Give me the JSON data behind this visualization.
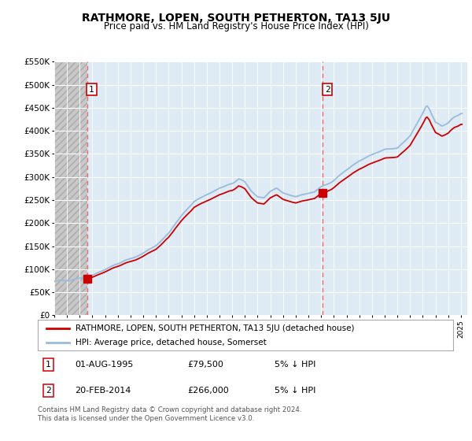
{
  "title": "RATHMORE, LOPEN, SOUTH PETHERTON, TA13 5JU",
  "subtitle": "Price paid vs. HM Land Registry's House Price Index (HPI)",
  "legend_line1": "RATHMORE, LOPEN, SOUTH PETHERTON, TA13 5JU (detached house)",
  "legend_line2": "HPI: Average price, detached house, Somerset",
  "annotation1_date": "01-AUG-1995",
  "annotation1_price": "£79,500",
  "annotation1_hpi": "5% ↓ HPI",
  "annotation1_year": 1995.583,
  "annotation1_value": 79500,
  "annotation2_date": "20-FEB-2014",
  "annotation2_price": "£266,000",
  "annotation2_hpi": "5% ↓ HPI",
  "annotation2_year": 2014.125,
  "annotation2_value": 266000,
  "footer": "Contains HM Land Registry data © Crown copyright and database right 2024.\nThis data is licensed under the Open Government Licence v3.0.",
  "red_color": "#cc0000",
  "blue_color": "#99bbdd",
  "grid_color": "#ccdde8",
  "background_color": "#deeaf4",
  "hatch_color": "#bbbbbb",
  "ylim": [
    0,
    550000
  ],
  "xlim_start": 1993.0,
  "xlim_end": 2025.5,
  "hatch_end": 1995.583
}
